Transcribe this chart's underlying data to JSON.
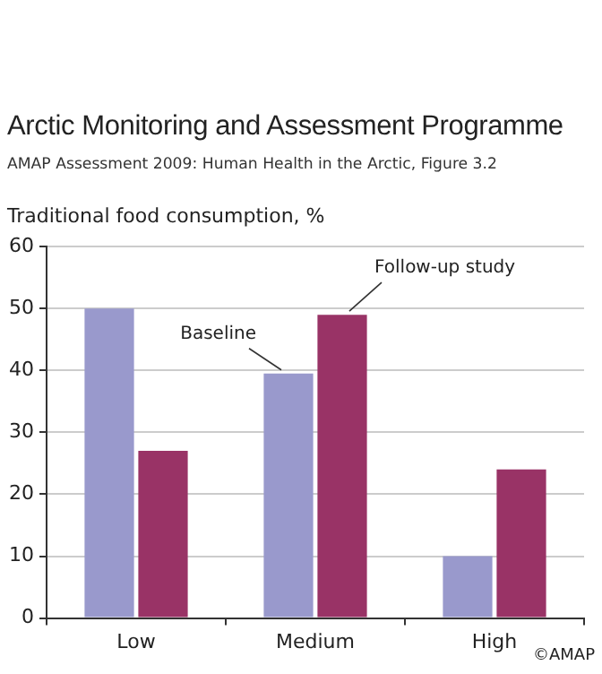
{
  "chart_data": {
    "type": "bar",
    "title": "Arctic Monitoring and Assessment Programme",
    "subtitle": "AMAP Assessment 2009: Human Health in the Arctic, Figure 3.2",
    "ylabel": "Traditional food consumption, %",
    "categories": [
      "Low",
      "Medium",
      "High"
    ],
    "series": [
      {
        "name": "Baseline",
        "color": "#9999cc",
        "values": [
          50,
          39.5,
          10
        ]
      },
      {
        "name": "Follow-up study",
        "color": "#993366",
        "values": [
          27,
          49,
          24
        ]
      }
    ],
    "ylim": [
      0,
      60
    ],
    "yticks": [
      0,
      10,
      20,
      30,
      40,
      50,
      60
    ],
    "grid": "y",
    "legend": false,
    "annotations": [
      "©AMAP"
    ]
  }
}
